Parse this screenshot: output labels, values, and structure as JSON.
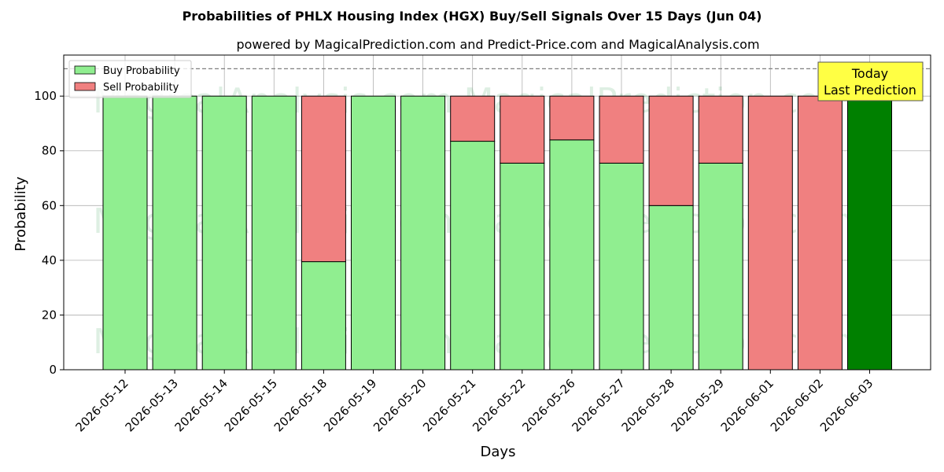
{
  "chart_data": {
    "type": "bar",
    "stacked": true,
    "title": "Probabilities of PHLX Housing Index (HGX) Buy/Sell Signals Over 15 Days (Jun 04)",
    "subtitle": "powered by MagicalPrediction.com and Predict-Price.com and MagicalAnalysis.com",
    "xlabel": "Days",
    "ylabel": "Probability",
    "ylim": [
      0,
      115
    ],
    "yticks": [
      0,
      20,
      40,
      60,
      80,
      100
    ],
    "reference_line": 110,
    "grid": true,
    "legend_position": "top-left",
    "categories": [
      "2026-05-12",
      "2026-05-13",
      "2026-05-14",
      "2026-05-15",
      "2026-05-18",
      "2026-05-19",
      "2026-05-20",
      "2026-05-21",
      "2026-05-22",
      "2026-05-26",
      "2026-05-27",
      "2026-05-28",
      "2026-05-29",
      "2026-06-01",
      "2026-06-02",
      "2026-06-03"
    ],
    "series": [
      {
        "name": "Buy Probability",
        "color": "#90ee90",
        "values": [
          100,
          100,
          100,
          100,
          39.5,
          100,
          100,
          83.5,
          75.5,
          84,
          75.5,
          60,
          75.5,
          0,
          0,
          100
        ]
      },
      {
        "name": "Sell Probability",
        "color": "#f08080",
        "values": [
          0,
          0,
          0,
          0,
          60.5,
          0,
          0,
          16.5,
          24.5,
          16,
          24.5,
          40,
          24.5,
          100,
          100,
          0
        ]
      }
    ],
    "highlight": {
      "index": 15,
      "color": "#008000"
    },
    "annotation": {
      "line1": "Today",
      "line2": "Last Prediction",
      "background": "#ffff44"
    },
    "watermarks": [
      "MagicalAnalysis.com",
      "MagicalPrediction.com"
    ]
  }
}
